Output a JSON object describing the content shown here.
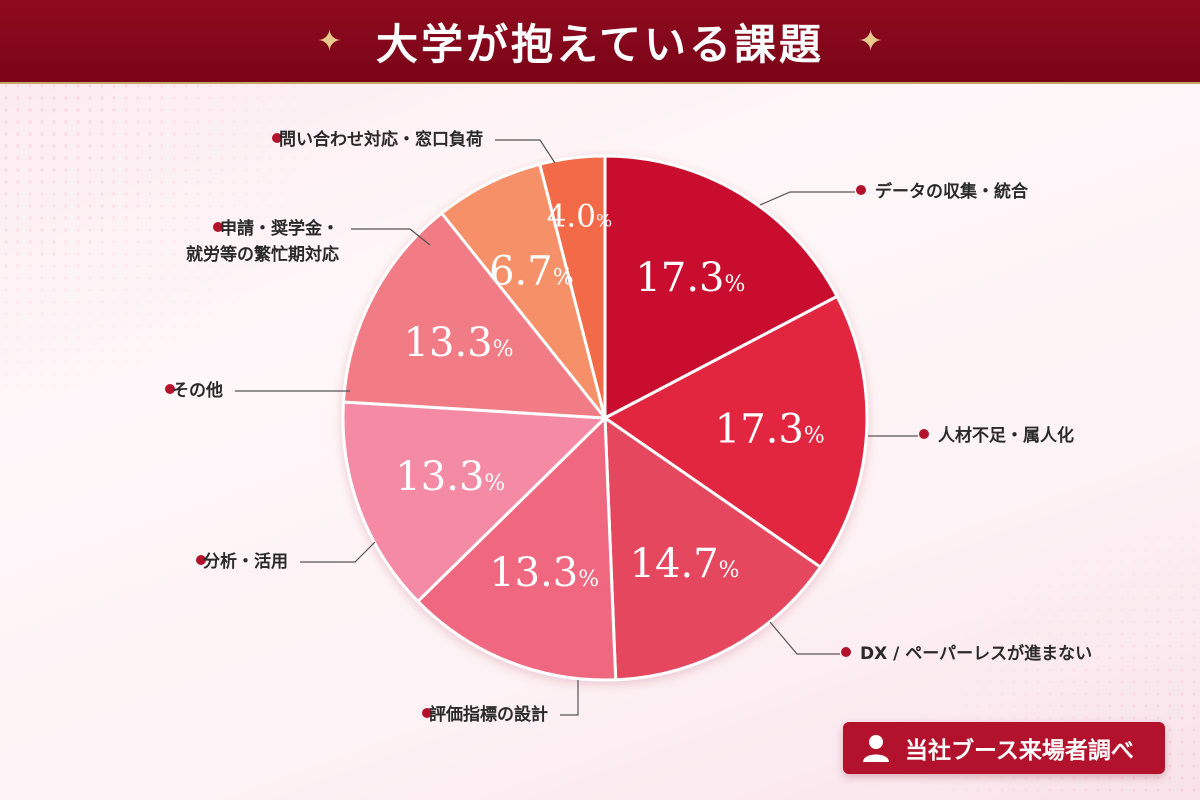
{
  "header": {
    "title": "大学が抱えている課題",
    "sparkle_glyph": "✦"
  },
  "badge": {
    "label": "当社ブース来場者調べ",
    "icon": "person-icon"
  },
  "chart_data": {
    "type": "pie",
    "unit": "%",
    "start_angle_deg": 0,
    "direction": "clockwise",
    "slices": [
      {
        "label": "データの収集・統合",
        "value": 17.3,
        "display": "17.3",
        "color": "#c8102e"
      },
      {
        "label": "人材不足・属人化",
        "value": 17.3,
        "display": "17.3",
        "color": "#e2253f"
      },
      {
        "label": "DX / ペーパーレスが進まない",
        "value": 14.7,
        "display": "14.7",
        "color": "#e5475e"
      },
      {
        "label": "評価指標の設計",
        "value": 13.3,
        "display": "13.3",
        "color": "#f06880"
      },
      {
        "label": "分析・活用",
        "value": 13.3,
        "display": "13.3",
        "color": "#f58aa5"
      },
      {
        "label": "その他",
        "value": 13.3,
        "display": "13.3",
        "color": "#f27b85"
      },
      {
        "label": "申請・奨学金・\n就労等の繁忙期対応",
        "value": 6.7,
        "display": "6.7",
        "color": "#f59068"
      },
      {
        "label": "問い合わせ対応・窓口負荷",
        "value": 4.0,
        "display": "4.0",
        "color": "#f26a47"
      }
    ]
  }
}
